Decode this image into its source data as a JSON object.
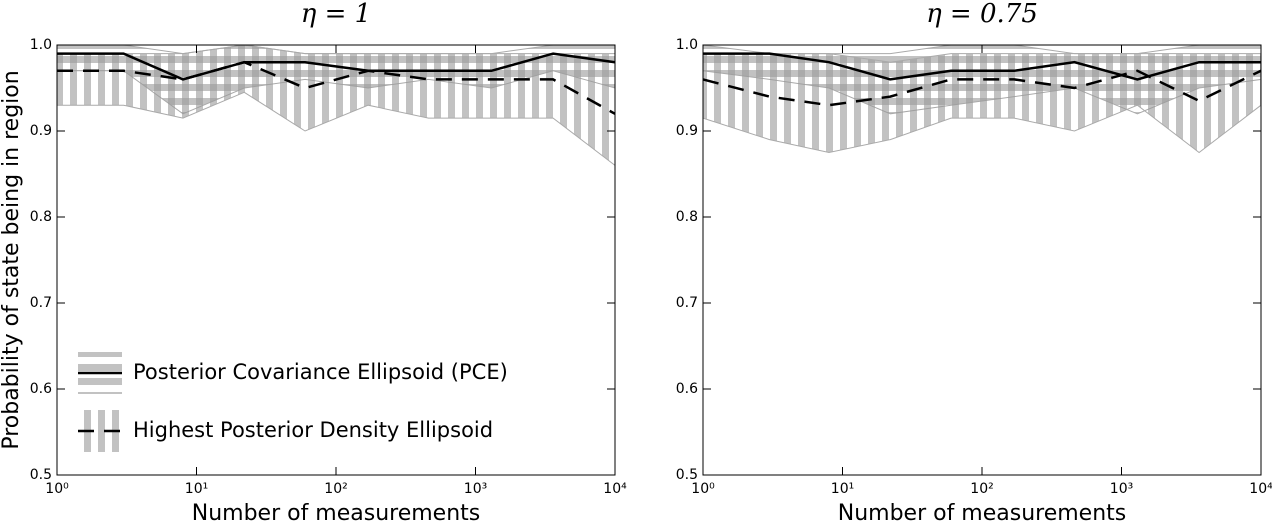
{
  "chart_data": [
    {
      "type": "line",
      "title": "η = 1",
      "xlabel": "Number of measurements",
      "ylabel": "Probability of state being in region",
      "x": [
        1,
        3,
        8,
        22,
        60,
        170,
        460,
        1300,
        3600,
        10000
      ],
      "xscale": "log",
      "xlim": [
        1,
        10000
      ],
      "xticks": [
        {
          "value": 1,
          "label": "10⁰"
        },
        {
          "value": 10,
          "label": "10¹"
        },
        {
          "value": 100,
          "label": "10²"
        },
        {
          "value": 1000,
          "label": "10³"
        },
        {
          "value": 10000,
          "label": "10⁴"
        }
      ],
      "ylim": [
        0.5,
        1
      ],
      "yticks": [
        0.5,
        0.6,
        0.7,
        0.8,
        0.9,
        {
          "value": 1,
          "label": "1.0"
        }
      ],
      "legend": "lower left",
      "series": [
        {
          "name": "Posterior Covariance Ellipsoid (PCE)",
          "color": "#000000",
          "linestyle": "solid",
          "band_color": "#999999",
          "hatch": "horizontal",
          "values": [
            0.99,
            0.99,
            0.96,
            0.98,
            0.98,
            0.97,
            0.97,
            0.97,
            0.99,
            0.98
          ],
          "lower": [
            0.97,
            0.97,
            0.92,
            0.95,
            0.96,
            0.95,
            0.96,
            0.95,
            0.97,
            0.95
          ],
          "upper": [
            1.0,
            1.0,
            0.99,
            1.0,
            0.99,
            0.99,
            0.99,
            0.99,
            1.0,
            1.0
          ]
        },
        {
          "name": "Highest Posterior Density Ellipsoid",
          "color": "#000000",
          "linestyle": "dashed",
          "band_color": "#999999",
          "hatch": "vertical",
          "values": [
            0.97,
            0.97,
            0.96,
            0.98,
            0.95,
            0.97,
            0.96,
            0.96,
            0.96,
            0.92
          ],
          "lower": [
            0.93,
            0.93,
            0.915,
            0.945,
            0.9,
            0.93,
            0.915,
            0.915,
            0.915,
            0.86
          ],
          "upper": [
            0.99,
            0.99,
            0.99,
            1.0,
            0.99,
            0.99,
            0.99,
            0.99,
            0.99,
            0.99
          ]
        }
      ]
    },
    {
      "type": "line",
      "title": "η = 0.75",
      "xlabel": "Number of measurements",
      "x": [
        1,
        3,
        8,
        22,
        60,
        170,
        460,
        1300,
        3600,
        10000
      ],
      "xscale": "log",
      "xlim": [
        1,
        10000
      ],
      "xticks": [
        {
          "value": 1,
          "label": "10⁰"
        },
        {
          "value": 10,
          "label": "10¹"
        },
        {
          "value": 100,
          "label": "10²"
        },
        {
          "value": 1000,
          "label": "10³"
        },
        {
          "value": 10000,
          "label": "10⁴"
        }
      ],
      "ylim": [
        0.5,
        1
      ],
      "yticks": [
        0.5,
        0.6,
        0.7,
        0.8,
        0.9,
        {
          "value": 1,
          "label": "1.0"
        }
      ],
      "series": [
        {
          "color": "#000000",
          "linestyle": "solid",
          "band_color": "#999999",
          "hatch": "horizontal",
          "values": [
            0.99,
            0.99,
            0.98,
            0.96,
            0.97,
            0.97,
            0.98,
            0.96,
            0.98,
            0.98
          ],
          "lower": [
            0.97,
            0.96,
            0.95,
            0.92,
            0.93,
            0.94,
            0.95,
            0.92,
            0.95,
            0.96
          ],
          "upper": [
            1.0,
            0.99,
            0.99,
            0.99,
            1.0,
            1.0,
            0.99,
            0.99,
            1.0,
            1.0
          ]
        },
        {
          "color": "#000000",
          "linestyle": "dashed",
          "band_color": "#999999",
          "hatch": "vertical",
          "values": [
            0.96,
            0.94,
            0.93,
            0.94,
            0.96,
            0.96,
            0.95,
            0.97,
            0.935,
            0.97
          ],
          "lower": [
            0.915,
            0.89,
            0.875,
            0.89,
            0.915,
            0.915,
            0.9,
            0.93,
            0.875,
            0.93
          ],
          "upper": [
            0.99,
            0.99,
            0.99,
            0.98,
            0.99,
            0.99,
            0.99,
            0.99,
            0.99,
            0.99
          ]
        }
      ]
    }
  ]
}
